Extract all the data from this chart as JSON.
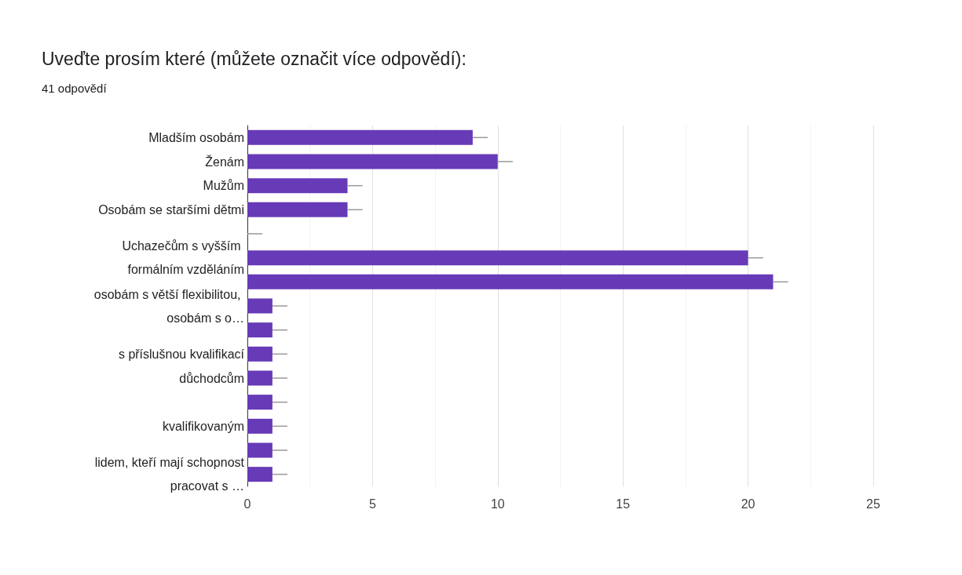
{
  "chart_data": {
    "type": "bar",
    "orientation": "horizontal",
    "title": "Uveďte prosím které (můžete označit více odpovědí):",
    "subtitle": "41 odpovědí",
    "categories": [
      "Mladším osobám",
      "Ženám",
      "Mužům",
      "Osobám se staršími dětmi",
      null,
      "Uchazečům s vyšším formálním vzděláním",
      null,
      "osobám s větší flexibilitou, osobám s o…",
      null,
      "s příslušnou kvalifikací",
      "důchodcům",
      null,
      "kvalifikovaným",
      null,
      "lidem, kteří mají schopnost pracovat s …"
    ],
    "values": [
      9,
      10,
      4,
      4,
      0,
      20,
      21,
      1,
      1,
      1,
      1,
      1,
      1,
      1,
      1
    ],
    "errors": [
      [
        9,
        9.6
      ],
      [
        10,
        10.6
      ],
      [
        4,
        4.6
      ],
      [
        4,
        4.6
      ],
      [
        0,
        0.6
      ],
      [
        20,
        20.6
      ],
      [
        21,
        21.6
      ],
      [
        1,
        1.6
      ],
      [
        1,
        1.6
      ],
      [
        1,
        1.6
      ],
      [
        1,
        1.6
      ],
      [
        1,
        1.6
      ],
      [
        1,
        1.6
      ],
      [
        1,
        1.6
      ],
      [
        1,
        1.6
      ]
    ],
    "color": "#673ab7",
    "xlim": [
      0,
      25
    ],
    "xticks": [
      0,
      5,
      10,
      15,
      20,
      25
    ],
    "grid": "x"
  }
}
